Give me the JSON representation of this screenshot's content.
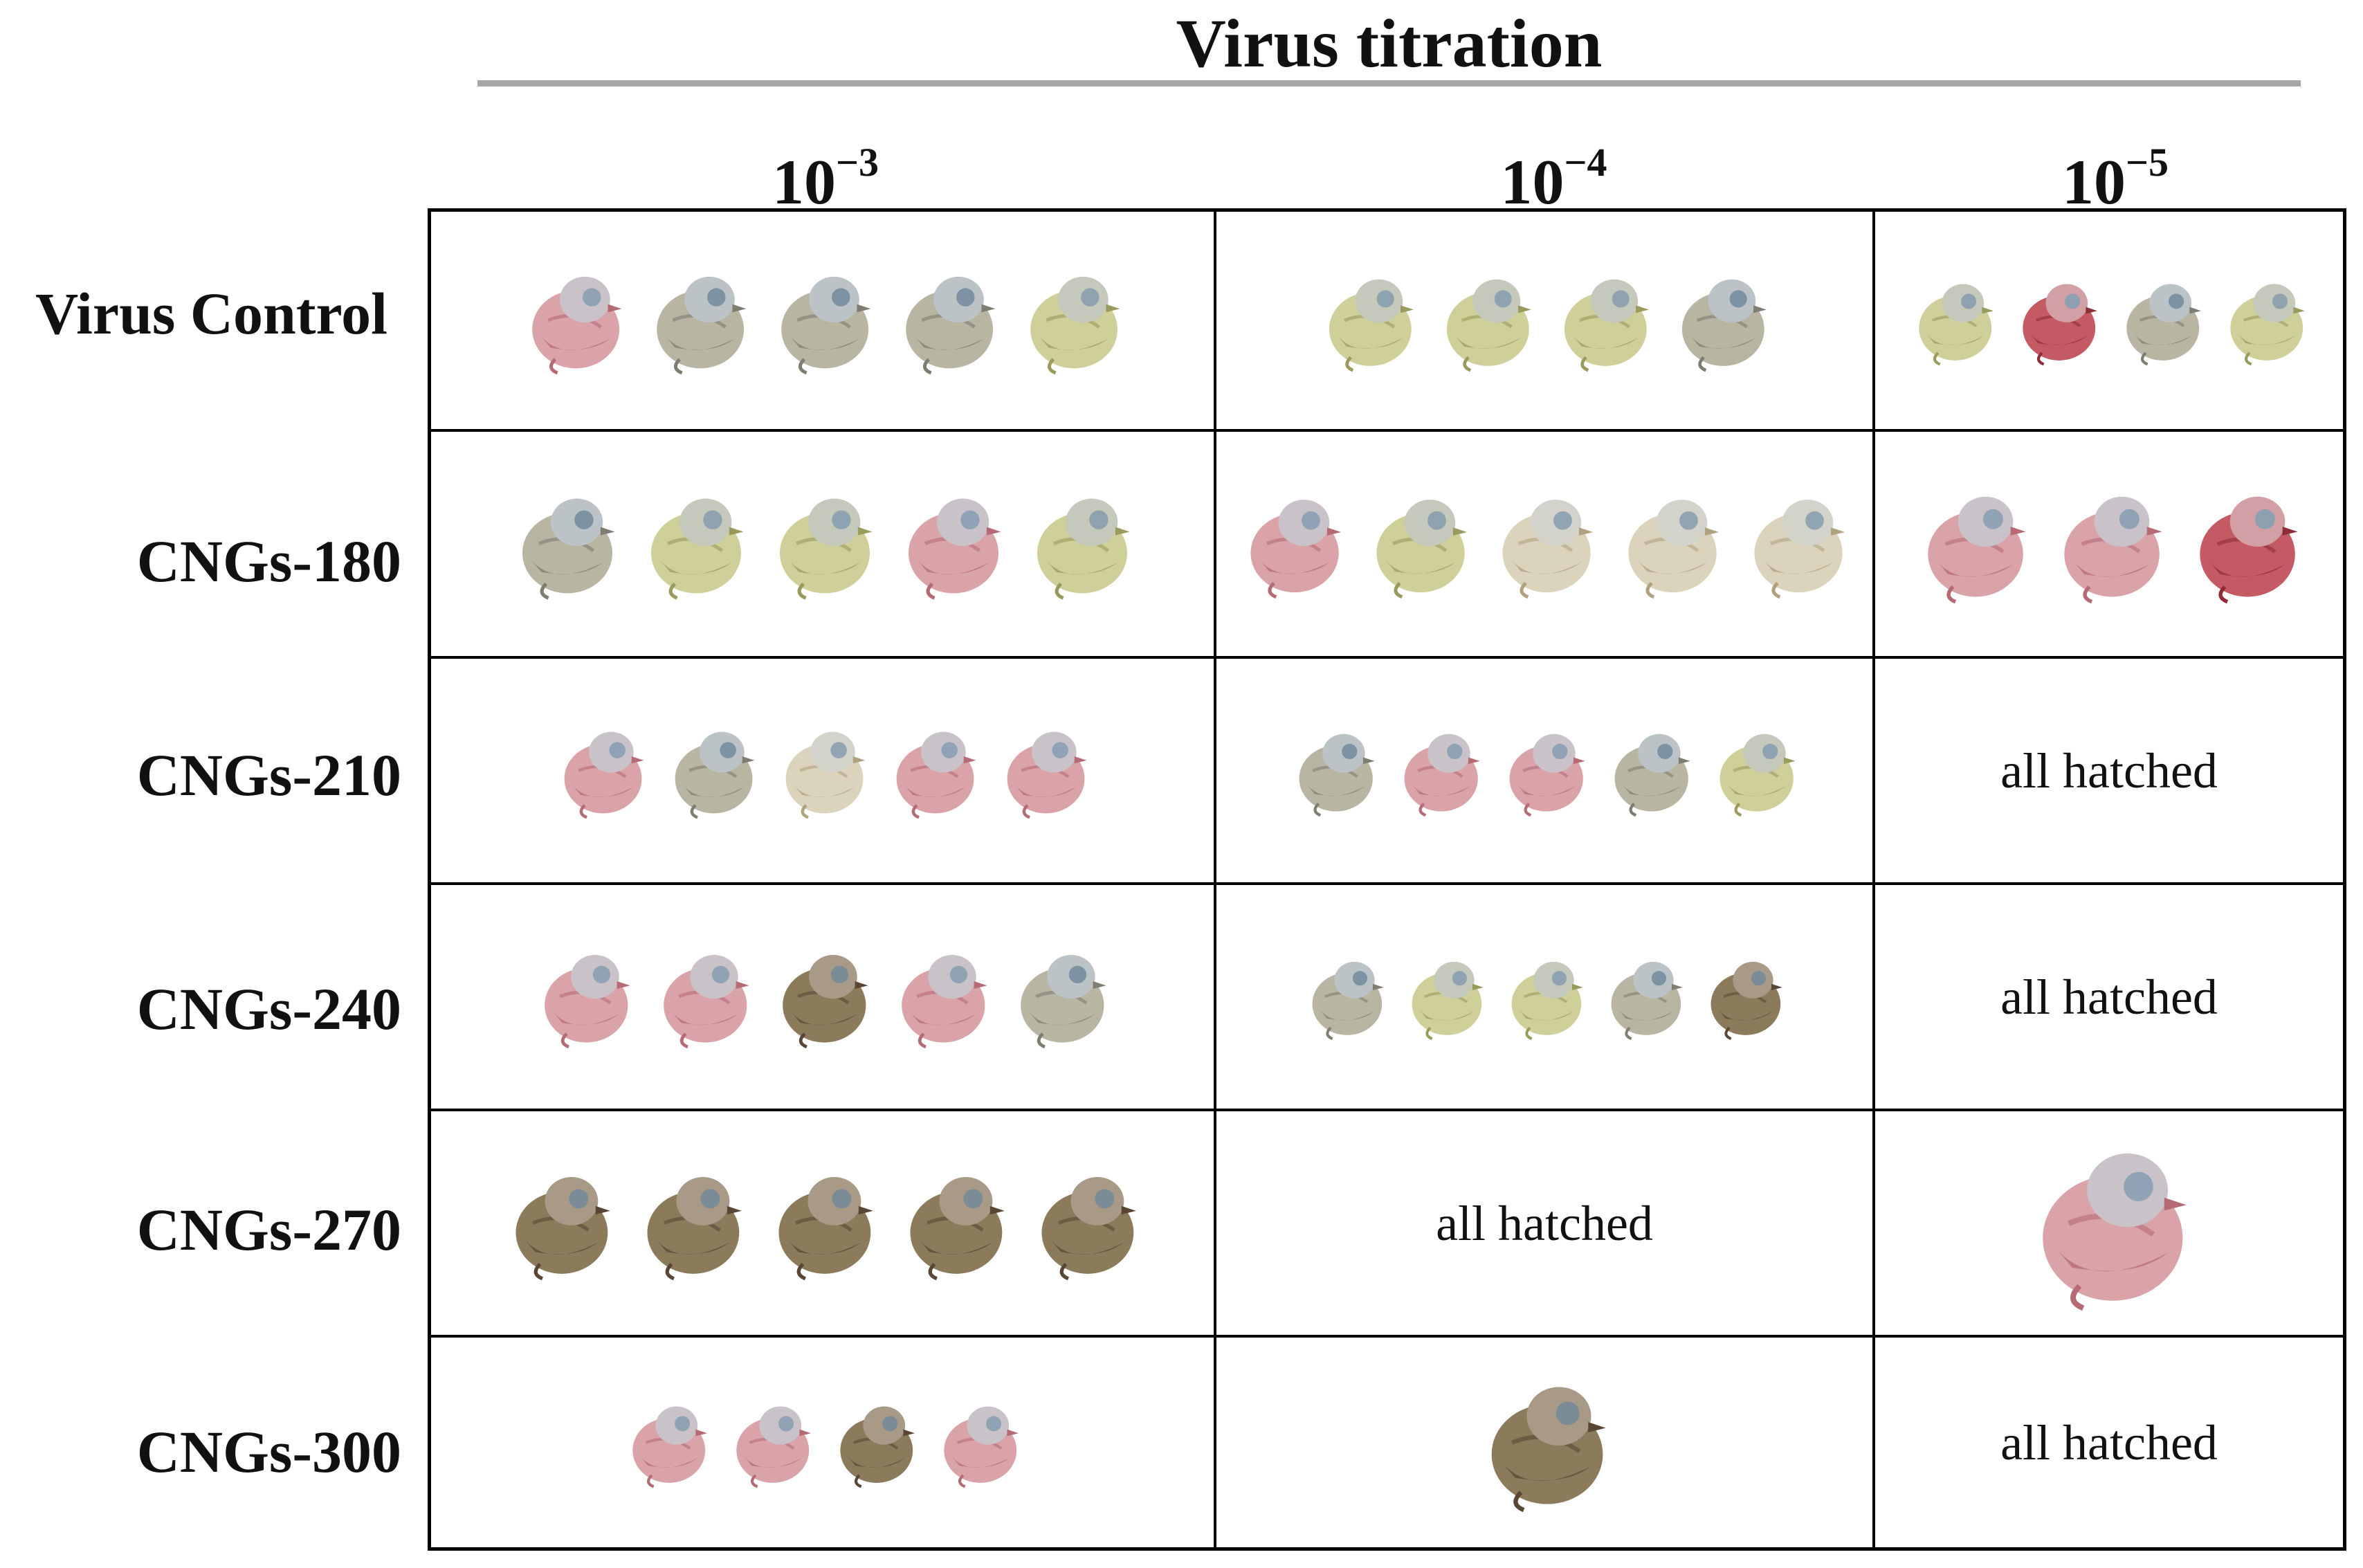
{
  "figure": {
    "super_title": "Virus titration",
    "columns": [
      {
        "base": "10",
        "exponent": "−3"
      },
      {
        "base": "10",
        "exponent": "−4"
      },
      {
        "base": "10",
        "exponent": "−5"
      }
    ],
    "rows": [
      {
        "label": "Virus Control",
        "cells": [
          {
            "kind": "embryos",
            "count": 5,
            "tones": [
              "pink",
              "grey",
              "grey",
              "grey",
              "yellow"
            ]
          },
          {
            "kind": "embryos",
            "count": 4,
            "tones": [
              "yellow",
              "yellow",
              "yellow",
              "grey"
            ]
          },
          {
            "kind": "embryos",
            "count": 4,
            "tones": [
              "yellow",
              "red",
              "grey",
              "yellow"
            ]
          }
        ]
      },
      {
        "label": "CNGs-180",
        "cells": [
          {
            "kind": "embryos",
            "count": 5,
            "tones": [
              "grey",
              "yellow",
              "yellow",
              "pink",
              "yellow"
            ]
          },
          {
            "kind": "embryos",
            "count": 5,
            "tones": [
              "pink",
              "yellow",
              "pale",
              "pale",
              "pale"
            ]
          },
          {
            "kind": "embryos",
            "count": 3,
            "tones": [
              "pink",
              "pink",
              "red"
            ]
          }
        ]
      },
      {
        "label": "CNGs-210",
        "cells": [
          {
            "kind": "embryos",
            "count": 5,
            "tones": [
              "pink",
              "grey",
              "pale",
              "pink",
              "pink"
            ]
          },
          {
            "kind": "embryos",
            "count": 5,
            "tones": [
              "grey",
              "pink",
              "pink",
              "grey",
              "yellow"
            ]
          },
          {
            "kind": "text",
            "text": "all hatched"
          }
        ]
      },
      {
        "label": "CNGs-240",
        "cells": [
          {
            "kind": "embryos",
            "count": 5,
            "tones": [
              "pink",
              "pink",
              "brown",
              "pink",
              "grey"
            ]
          },
          {
            "kind": "embryos",
            "count": 5,
            "tones": [
              "grey",
              "yellow",
              "yellow",
              "grey",
              "brown"
            ]
          },
          {
            "kind": "text",
            "text": "all hatched"
          }
        ]
      },
      {
        "label": "CNGs-270",
        "cells": [
          {
            "kind": "embryos",
            "count": 5,
            "tones": [
              "brown",
              "brown",
              "brown",
              "brown",
              "brown"
            ]
          },
          {
            "kind": "text",
            "text": "all hatched"
          },
          {
            "kind": "embryos",
            "count": 1,
            "tones": [
              "pink"
            ]
          }
        ]
      },
      {
        "label": "CNGs-300",
        "cells": [
          {
            "kind": "embryos",
            "count": 4,
            "tones": [
              "pink",
              "pink",
              "brown",
              "pink"
            ]
          },
          {
            "kind": "embryos",
            "count": 1,
            "tones": [
              "brown"
            ]
          },
          {
            "kind": "text",
            "text": "all hatched"
          }
        ]
      }
    ],
    "colors": {
      "grid_line": "#000000",
      "super_rule": "#a6a6a6",
      "background": "#ffffff"
    }
  }
}
